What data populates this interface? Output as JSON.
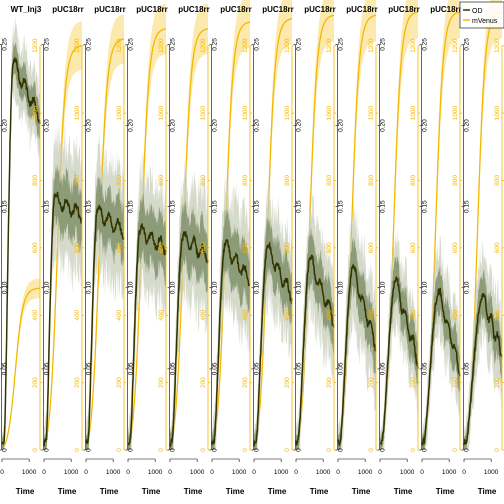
{
  "chart_data": {
    "type": "line",
    "panels": [
      {
        "title": "WT_Inj3",
        "od_peak": 0.24,
        "od_peak_t": 0.3,
        "od_end": 0.205,
        "venus_end": 480,
        "od_spread": 0.012
      },
      {
        "title": "pUC18rr",
        "od_peak": 0.155,
        "od_peak_t": 0.28,
        "od_end": 0.145,
        "venus_end": 1200,
        "od_spread": 0.02
      },
      {
        "title": "pUC18rr",
        "od_peak": 0.147,
        "od_peak_t": 0.3,
        "od_end": 0.135,
        "venus_end": 1220,
        "od_spread": 0.02
      },
      {
        "title": "pUC18rr",
        "od_peak": 0.135,
        "od_peak_t": 0.32,
        "od_end": 0.125,
        "venus_end": 1250,
        "od_spread": 0.02
      },
      {
        "title": "pUC18rr",
        "od_peak": 0.131,
        "od_peak_t": 0.34,
        "od_end": 0.12,
        "venus_end": 1250,
        "od_spread": 0.02
      },
      {
        "title": "pUC18rr",
        "od_peak": 0.127,
        "od_peak_t": 0.35,
        "od_end": 0.105,
        "venus_end": 1270,
        "od_spread": 0.02
      },
      {
        "title": "pUC18rr",
        "od_peak": 0.125,
        "od_peak_t": 0.36,
        "od_end": 0.095,
        "venus_end": 1280,
        "od_spread": 0.018
      },
      {
        "title": "pUC18rr",
        "od_peak": 0.118,
        "od_peak_t": 0.38,
        "od_end": 0.08,
        "venus_end": 1290,
        "od_spread": 0.018
      },
      {
        "title": "pUC18rr",
        "od_peak": 0.113,
        "od_peak_t": 0.4,
        "od_end": 0.065,
        "venus_end": 1290,
        "od_spread": 0.018
      },
      {
        "title": "pUC18rr",
        "od_peak": 0.105,
        "od_peak_t": 0.42,
        "od_end": 0.055,
        "venus_end": 1300,
        "od_spread": 0.015
      },
      {
        "title": "pUC18rr",
        "od_peak": 0.098,
        "od_peak_t": 0.45,
        "od_end": 0.05,
        "venus_end": 1300,
        "od_spread": 0.015
      },
      {
        "title": "",
        "od_peak": 0.095,
        "od_peak_t": 0.5,
        "od_end": 0.06,
        "venus_end": 1300,
        "od_spread": 0.015
      }
    ],
    "x_range": [
      0,
      1400
    ],
    "x_ticks": [
      "0",
      "1000"
    ],
    "xlabel": "Time",
    "y_range": [
      0,
      0.27
    ],
    "y_ticks": [
      0.0,
      0.05,
      0.1,
      0.15,
      0.2,
      0.25
    ],
    "y_tick_labels": [
      "0",
      "0.05",
      "0.10",
      "0.15",
      "0.20",
      "0.25"
    ],
    "y2_range": [
      0,
      1300
    ],
    "y2_ticks": [
      0,
      200,
      400,
      600,
      800,
      1000,
      1200
    ],
    "y2_tick_labels": [
      "0",
      "200",
      "400",
      "600",
      "800",
      "1000",
      "1200"
    ],
    "legend": {
      "position": "top-right",
      "entries": [
        {
          "label": "OD",
          "color": "#333300"
        },
        {
          "label": "mVenus",
          "color": "#f5b800"
        }
      ]
    },
    "colors": {
      "od_line": "#333300",
      "od_band": "#7f8f6a",
      "od_band_light": "#c8ceba",
      "venus_line": "#f5b800",
      "venus_band": "#fbe08a"
    }
  }
}
